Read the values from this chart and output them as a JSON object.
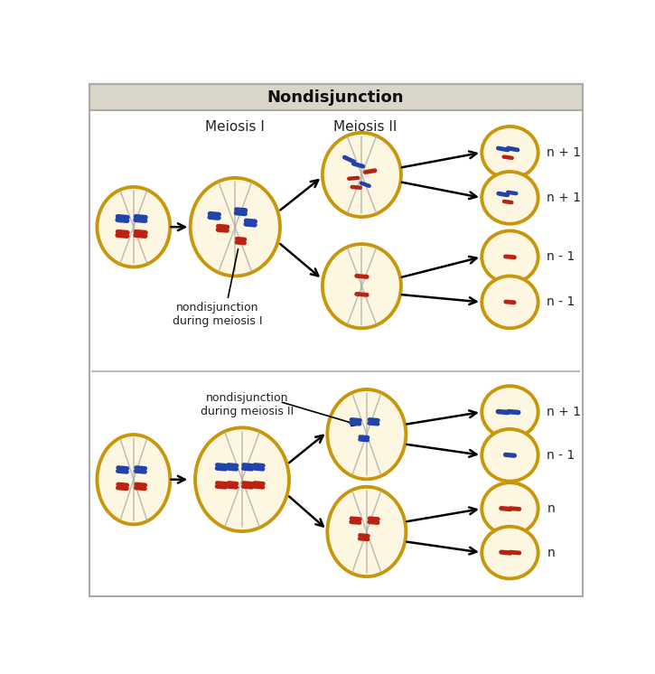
{
  "title": "Nondisjunction",
  "title_bg": "#d9d5c9",
  "bg_color": "#ffffff",
  "cell_fill": "#fdf6e0",
  "cell_edge_gold": "#c8960a",
  "cell_edge_dark": "#a07808",
  "spindle_color": "#aaaaaa",
  "blue_chrom": "#2244aa",
  "red_chrom": "#bb2211",
  "label_meiosis1": "Meiosis I",
  "label_meiosis2": "Meiosis II",
  "label_ndm1": "nondisjunction\nduring meiosis I",
  "label_ndm2": "nondisjunction\nduring meiosis II",
  "border_color": "#aaaaaa",
  "text_color": "#222222"
}
